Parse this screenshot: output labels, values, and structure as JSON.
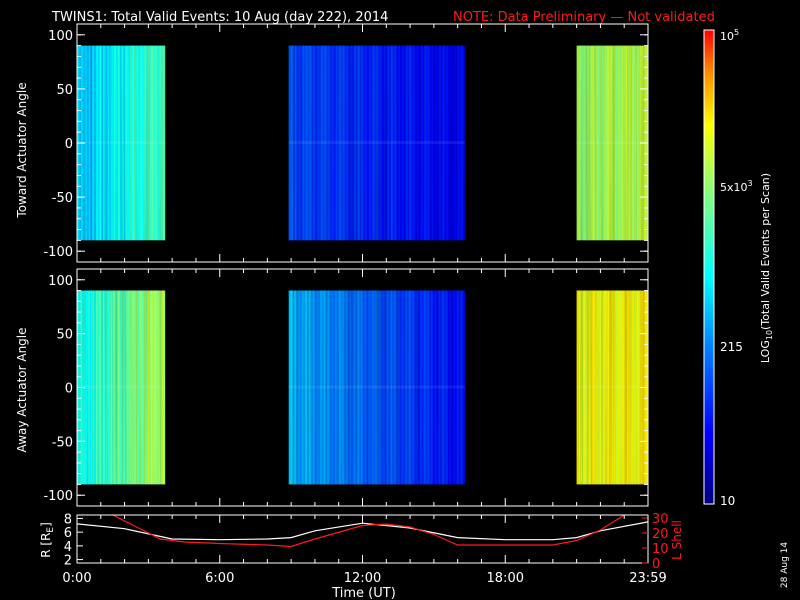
{
  "title": {
    "main": "TWINS1: Total Valid Events: 10 Aug (day 222), 2014",
    "note": "NOTE: Data Preliminary — Not validated",
    "note_color": "#ff1a1a"
  },
  "date_stamp": "28 Aug 14",
  "colorbar": {
    "label": "LOG10(Total Valid Events per Scan)",
    "ticks": [
      "10",
      "215",
      "5x10^3",
      "10^5"
    ]
  },
  "chart_data": [
    {
      "type": "heatmap",
      "ylabel": "Toward Actuator Angle",
      "ylim": [
        -110,
        110
      ],
      "yticks": [
        100,
        50,
        0,
        -50,
        -100
      ],
      "data_angle_range": [
        -90,
        90
      ],
      "x_unit": "hours UT",
      "segments": [
        {
          "start": 0.0,
          "end": 3.7,
          "level_start": 0.4,
          "level_end": 0.58
        },
        {
          "start": 8.9,
          "end": 16.3,
          "level_start": 0.26,
          "level_end": 0.14
        },
        {
          "start": 21.0,
          "end": 24.0,
          "level_start": 0.68,
          "level_end": 0.72
        }
      ],
      "colorscale": "log10 events (cyan-blue low, yellow-red high)"
    },
    {
      "type": "heatmap",
      "ylabel": "Away Actuator Angle",
      "ylim": [
        -110,
        110
      ],
      "yticks": [
        100,
        50,
        0,
        -50,
        -100
      ],
      "data_angle_range": [
        -90,
        90
      ],
      "x_unit": "hours UT",
      "segments": [
        {
          "start": 0.0,
          "end": 3.7,
          "level_start": 0.48,
          "level_end": 0.72
        },
        {
          "start": 8.9,
          "end": 16.3,
          "level_start": 0.4,
          "level_end": 0.16
        },
        {
          "start": 21.0,
          "end": 24.0,
          "level_start": 0.78,
          "level_end": 0.8
        }
      ],
      "colorscale": "log10 events (cyan-blue low, yellow-red high)"
    },
    {
      "type": "line",
      "xlabel": "Time (UT)",
      "xticks": [
        "0:00",
        "6:00",
        "12:00",
        "18:00",
        "23:59"
      ],
      "xtick_hours": [
        0,
        6,
        12,
        18,
        24
      ],
      "left_axis": {
        "label": "R [RE]",
        "ticks": [
          2,
          4,
          6,
          8
        ],
        "ylim": [
          1.5,
          8.5
        ],
        "color": "#ffffff"
      },
      "right_axis": {
        "label": "L Shell",
        "ticks": [
          0,
          10,
          20,
          30
        ],
        "ylim": [
          0,
          32
        ],
        "color": "#ff1a1a"
      },
      "series": [
        {
          "axis": "left",
          "color": "#ffffff",
          "x": [
            0,
            2,
            4,
            6,
            8,
            9,
            10,
            12,
            14,
            16,
            18,
            20,
            21,
            22,
            24
          ],
          "y": [
            7.2,
            6.5,
            5.0,
            4.9,
            5.0,
            5.2,
            6.2,
            7.3,
            6.6,
            5.2,
            4.9,
            4.9,
            5.2,
            6.2,
            7.5
          ]
        },
        {
          "axis": "right",
          "color": "#ff1a1a",
          "x": [
            1.5,
            2.5,
            3.5,
            4.5,
            6,
            8,
            9,
            10,
            12,
            13,
            14,
            15,
            16,
            18,
            20,
            21,
            22,
            23
          ],
          "y": [
            32,
            24,
            16,
            14,
            13,
            12,
            11,
            16,
            25,
            26,
            24,
            19,
            12,
            12,
            12,
            15,
            22,
            32
          ]
        }
      ]
    }
  ]
}
